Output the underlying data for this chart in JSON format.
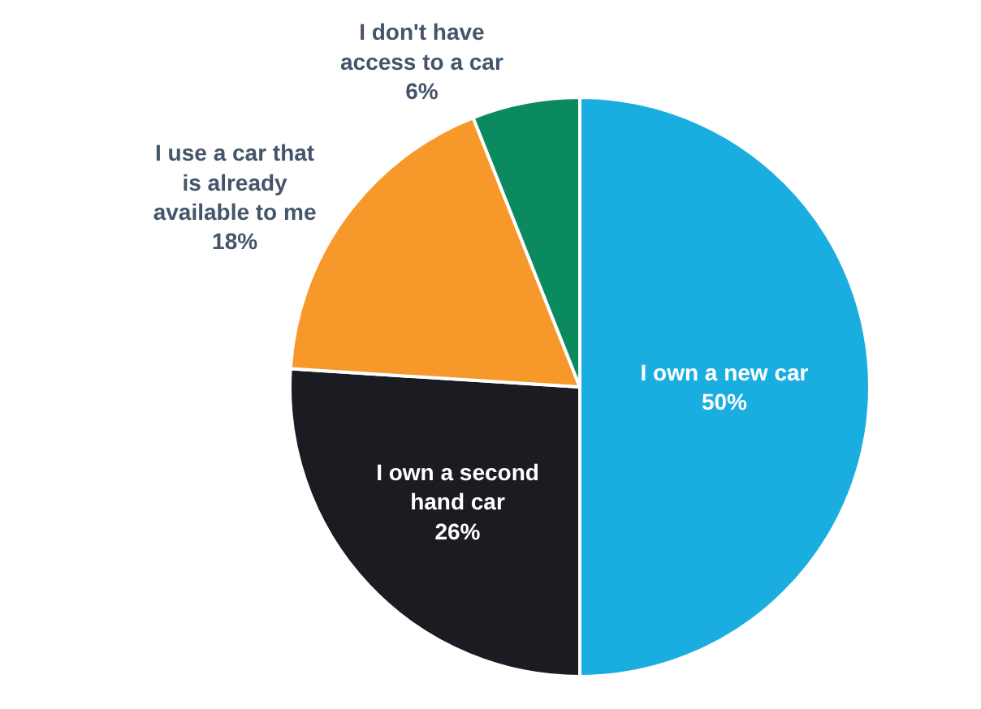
{
  "chart_data": {
    "type": "pie",
    "categories": [
      "I own a new car",
      "I own a second\nhand car",
      "I use a car that\nis already\navailable to me",
      "I don't have\naccess to a car"
    ],
    "values": [
      50,
      26,
      18,
      6
    ],
    "value_labels": [
      "50%",
      "26%",
      "18%",
      "6%"
    ],
    "colors": [
      "#1aaee0",
      "#1b1c22",
      "#f7982a",
      "#0c8a5f"
    ],
    "legend": false
  }
}
